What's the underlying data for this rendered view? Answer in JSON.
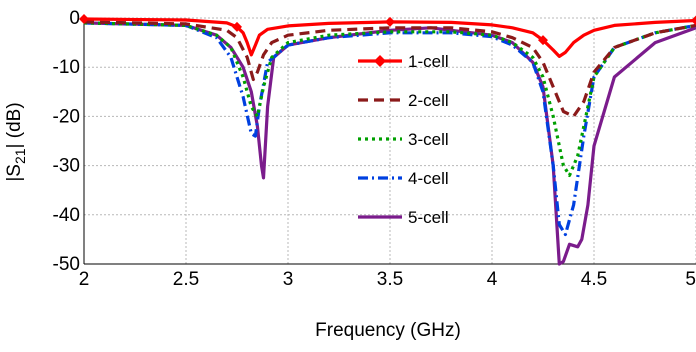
{
  "chart_data": {
    "type": "line",
    "title": "",
    "xlabel": "Frequency (GHz)",
    "ylabel": {
      "prefix": "|S",
      "sub": "21",
      "suffix": "| (dB)"
    },
    "xlim": [
      2,
      5
    ],
    "ylim": [
      -50,
      0
    ],
    "xticks": [
      2,
      2.5,
      3,
      3.5,
      4,
      4.5,
      5
    ],
    "xtick_labels": [
      "2",
      "2.5",
      "3",
      "3.5",
      "4",
      "4.5",
      "5"
    ],
    "yticks": [
      0,
      -10,
      -20,
      -30,
      -40,
      -50
    ],
    "ytick_labels": [
      "0",
      "-10",
      "-20",
      "-30",
      "-40",
      "-50"
    ],
    "grid": true,
    "legend_position": "center",
    "series": [
      {
        "name": "1-cell",
        "color": "#ff0000",
        "dash": "solid",
        "marker": "diamond",
        "markers_at": [
          2,
          2.75,
          3.5,
          4.25,
          5
        ],
        "x": [
          2,
          2.5,
          2.7,
          2.75,
          2.78,
          2.8,
          2.82,
          2.84,
          2.86,
          2.9,
          3.0,
          3.2,
          3.5,
          3.8,
          4.0,
          4.1,
          4.2,
          4.25,
          4.3,
          4.33,
          4.36,
          4.4,
          4.45,
          4.5,
          4.6,
          4.8,
          5
        ],
        "y": [
          -0.2,
          -0.4,
          -1.0,
          -1.8,
          -3.0,
          -5.0,
          -7.5,
          -5.5,
          -3.5,
          -2.3,
          -1.6,
          -1.1,
          -0.8,
          -0.9,
          -1.4,
          -2.0,
          -3.0,
          -4.5,
          -6.5,
          -7.8,
          -7.0,
          -5.0,
          -3.5,
          -2.5,
          -1.5,
          -0.9,
          -0.5
        ]
      },
      {
        "name": "2-cell",
        "color": "#8b1a1a",
        "dash": "10 6",
        "marker": "none",
        "x": [
          2,
          2.5,
          2.7,
          2.75,
          2.8,
          2.83,
          2.85,
          2.88,
          2.92,
          3.0,
          3.2,
          3.5,
          3.8,
          4.0,
          4.1,
          4.2,
          4.25,
          4.3,
          4.35,
          4.4,
          4.45,
          4.5,
          4.6,
          4.8,
          5
        ],
        "y": [
          -0.8,
          -1.2,
          -2.5,
          -4.0,
          -8.0,
          -12.5,
          -11.0,
          -7.5,
          -5.0,
          -3.5,
          -2.5,
          -2.0,
          -2.0,
          -2.8,
          -4.0,
          -6.0,
          -9.0,
          -14.0,
          -19.0,
          -20.0,
          -17.0,
          -11.0,
          -6.0,
          -3.0,
          -1.5
        ]
      },
      {
        "name": "3-cell",
        "color": "#00a000",
        "dash": "3 4",
        "marker": "none",
        "x": [
          2,
          2.5,
          2.65,
          2.72,
          2.78,
          2.82,
          2.85,
          2.88,
          2.92,
          3.0,
          3.2,
          3.5,
          3.8,
          4.0,
          4.1,
          4.2,
          4.25,
          4.3,
          4.35,
          4.38,
          4.42,
          4.47,
          4.5,
          4.6,
          4.8,
          5
        ],
        "y": [
          -1.0,
          -1.5,
          -3.5,
          -6.0,
          -12.0,
          -18.0,
          -20.0,
          -14.0,
          -8.0,
          -5.0,
          -3.5,
          -2.8,
          -2.8,
          -3.5,
          -5.0,
          -8.0,
          -12.0,
          -20.0,
          -30.0,
          -32.0,
          -28.0,
          -18.0,
          -12.0,
          -6.0,
          -3.0,
          -1.5
        ]
      },
      {
        "name": "4-cell",
        "color": "#0040e0",
        "dash": "10 4 2 4",
        "marker": "none",
        "x": [
          2,
          2.5,
          2.65,
          2.72,
          2.78,
          2.82,
          2.84,
          2.86,
          2.9,
          3.0,
          3.2,
          3.5,
          3.8,
          4.0,
          4.1,
          4.2,
          4.25,
          4.3,
          4.33,
          4.36,
          4.4,
          4.45,
          4.5,
          4.6,
          4.8,
          5
        ],
        "y": [
          -1.0,
          -1.5,
          -4.0,
          -8.0,
          -16.0,
          -23.5,
          -24.0,
          -18.0,
          -9.0,
          -5.5,
          -4.0,
          -3.0,
          -3.0,
          -3.8,
          -5.5,
          -9.0,
          -15.0,
          -30.0,
          -42.0,
          -44.0,
          -38.0,
          -24.0,
          -12.0,
          -6.0,
          -3.0,
          -1.5
        ]
      },
      {
        "name": "5-cell",
        "color": "#7b1c8c",
        "dash": "solid",
        "marker": "none",
        "x": [
          2,
          2.5,
          2.65,
          2.72,
          2.78,
          2.82,
          2.85,
          2.87,
          2.88,
          2.9,
          2.93,
          3.0,
          3.2,
          3.5,
          3.7,
          3.8,
          4.0,
          4.1,
          4.2,
          4.25,
          4.3,
          4.33,
          4.35,
          4.38,
          4.42,
          4.44,
          4.47,
          4.5,
          4.6,
          4.8,
          5
        ],
        "y": [
          -1.0,
          -1.5,
          -3.5,
          -6.0,
          -10.0,
          -15.0,
          -22.0,
          -30.0,
          -32.5,
          -18.0,
          -8.0,
          -5.5,
          -4.0,
          -2.5,
          -2.0,
          -2.5,
          -3.5,
          -5.0,
          -9.0,
          -14.0,
          -30.0,
          -50.0,
          -49.5,
          -46.0,
          -46.5,
          -45.0,
          -38.0,
          -26.0,
          -12.0,
          -5.0,
          -2.0
        ]
      }
    ]
  }
}
